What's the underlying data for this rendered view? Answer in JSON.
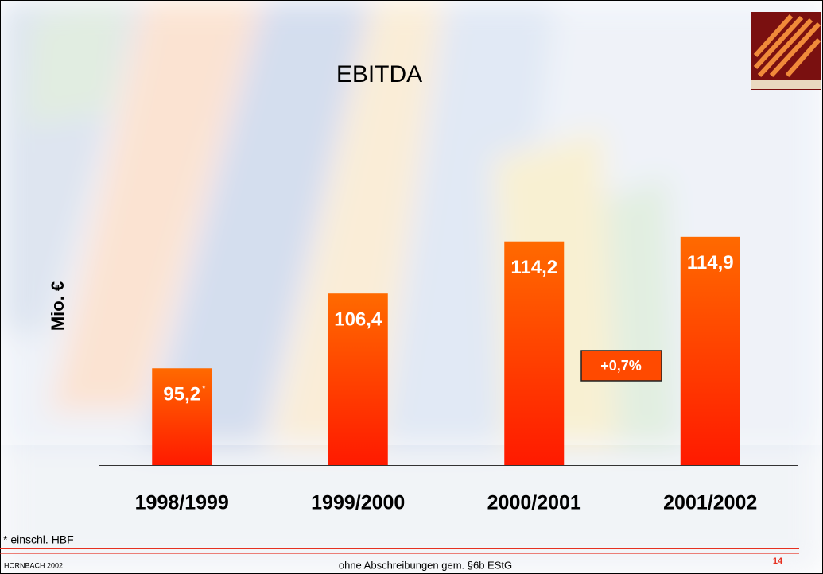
{
  "chart_data": {
    "type": "bar",
    "title": "EBITDA",
    "y_label": "Mio. €",
    "categories": [
      "1998/1999",
      "1999/2000",
      "2000/2001",
      "2001/2002"
    ],
    "values": [
      95.2,
      106.4,
      114.2,
      114.9
    ],
    "value_labels": [
      "95,2",
      "106,4",
      "114,2",
      "114,9"
    ],
    "color": "#ff3300",
    "ylim": [
      80.7,
      120
    ]
  },
  "annotations": {
    "footnote_marker": "*",
    "growth": "+0,7%"
  },
  "footnote": "* einschl. HBF",
  "footer": {
    "company": "HORNBACH 2002",
    "note": "ohne Abschreibungen gem. §6b EStG",
    "page": "14"
  }
}
